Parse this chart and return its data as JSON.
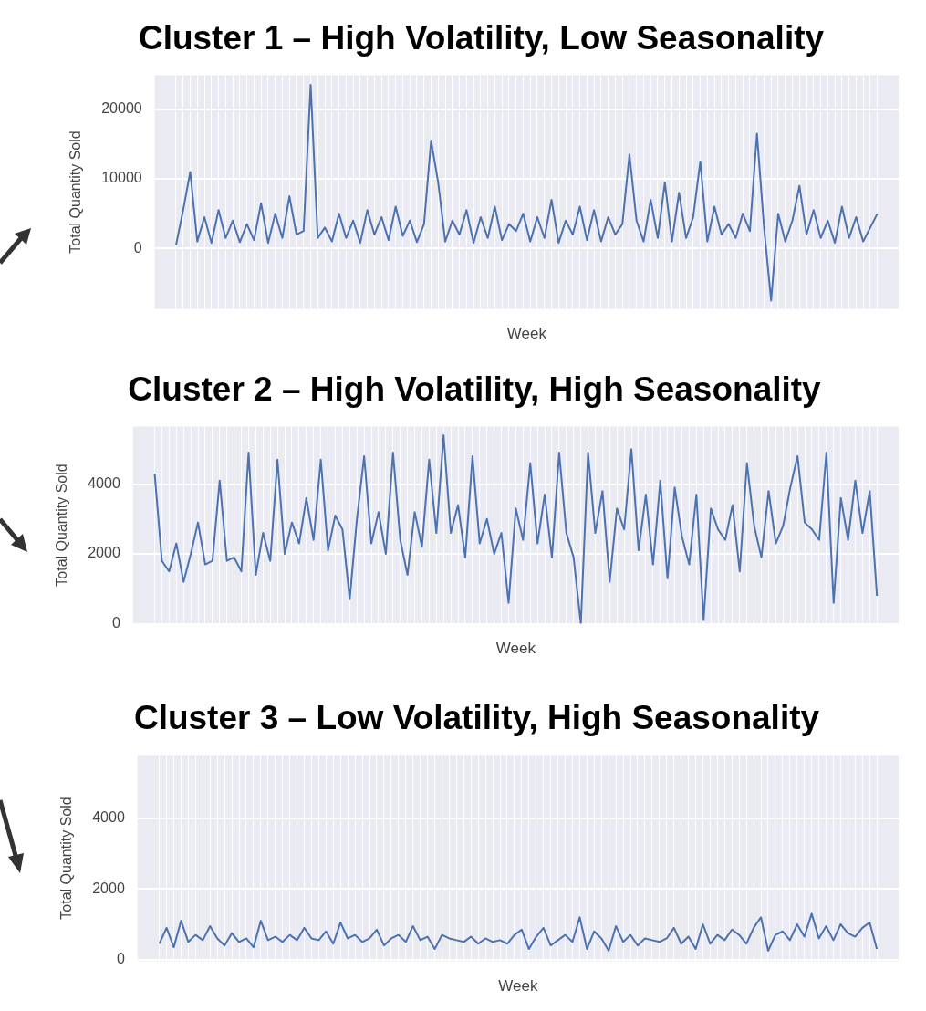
{
  "chart_data": [
    {
      "type": "line",
      "title": "Cluster 1 – High Volatility, Low Seasonality",
      "xlabel": "Week",
      "ylabel": "Total Quantity Sold",
      "categories": [
        null,
        null,
        null,
        null,
        null,
        null,
        null,
        null,
        null,
        null,
        null,
        null,
        null,
        null,
        null,
        null,
        null,
        null,
        null,
        null,
        null,
        null,
        null,
        null,
        null,
        null,
        null,
        null,
        null,
        null,
        null,
        null,
        null,
        null,
        null,
        null,
        null,
        null,
        null,
        null,
        null,
        null,
        null,
        null,
        null,
        null,
        null,
        null,
        null,
        null,
        null,
        null,
        null,
        null,
        null,
        null,
        null,
        null,
        null,
        null,
        null,
        null,
        null,
        null,
        null,
        null,
        null,
        null,
        null,
        null,
        null,
        null,
        null,
        null,
        null,
        null,
        null,
        null,
        null,
        null,
        null,
        null,
        null,
        null,
        null,
        null,
        null,
        null,
        null,
        null,
        null,
        null,
        null,
        null,
        null,
        null,
        null,
        null,
        null,
        null
      ],
      "series": [
        {
          "color": "#4c72b0",
          "values": [
            500,
            5500,
            11000,
            1000,
            4500,
            800,
            5500,
            1500,
            4000,
            900,
            3500,
            1200,
            6500,
            800,
            5000,
            1500,
            7500,
            2000,
            2500,
            23500,
            1500,
            3000,
            1000,
            5000,
            1500,
            4000,
            800,
            5500,
            2000,
            4500,
            1200,
            6000,
            1800,
            4000,
            900,
            3500,
            15500,
            9500,
            1000,
            4000,
            2000,
            5500,
            800,
            4500,
            1500,
            6000,
            1200,
            3500,
            2500,
            5000,
            1000,
            4500,
            1500,
            7000,
            800,
            4000,
            2000,
            6000,
            1200,
            5500,
            1000,
            4500,
            2000,
            3500,
            13500,
            4000,
            1000,
            7000,
            1500,
            9500,
            1000,
            8000,
            1500,
            4500,
            12500,
            1000,
            6000,
            2000,
            3500,
            1500,
            5000,
            2500,
            16500,
            3000,
            -7500,
            5000,
            1000,
            4000,
            9000,
            2000,
            5500,
            1500,
            4000,
            800,
            6000,
            1500,
            4500,
            1000,
            3000,
            5000
          ]
        }
      ],
      "ylim": [
        -8700,
        24900
      ],
      "yticks": [
        0,
        10000,
        20000
      ],
      "grid": true,
      "legend": false,
      "tick_labels": "y",
      "marker": "none",
      "line_style": "solid"
    },
    {
      "type": "line",
      "title": "Cluster 2 – High Volatility, High Seasonality",
      "xlabel": "Week",
      "ylabel": "Total Quantity Sold",
      "categories": [
        null,
        null,
        null,
        null,
        null,
        null,
        null,
        null,
        null,
        null,
        null,
        null,
        null,
        null,
        null,
        null,
        null,
        null,
        null,
        null,
        null,
        null,
        null,
        null,
        null,
        null,
        null,
        null,
        null,
        null,
        null,
        null,
        null,
        null,
        null,
        null,
        null,
        null,
        null,
        null,
        null,
        null,
        null,
        null,
        null,
        null,
        null,
        null,
        null,
        null,
        null,
        null,
        null,
        null,
        null,
        null,
        null,
        null,
        null,
        null,
        null,
        null,
        null,
        null,
        null,
        null,
        null,
        null,
        null,
        null,
        null,
        null,
        null,
        null,
        null,
        null,
        null,
        null,
        null,
        null,
        null,
        null,
        null,
        null,
        null,
        null,
        null,
        null,
        null,
        null,
        null,
        null,
        null,
        null,
        null,
        null,
        null,
        null,
        null,
        null,
        null
      ],
      "series": [
        {
          "color": "#4c72b0",
          "values": [
            4300,
            1800,
            1500,
            2300,
            1200,
            2000,
            2900,
            1700,
            1800,
            4100,
            1800,
            1900,
            1500,
            4900,
            1400,
            2600,
            1800,
            4700,
            2000,
            2900,
            2300,
            3600,
            2400,
            4700,
            2100,
            3100,
            2700,
            700,
            3000,
            4800,
            2300,
            3200,
            2000,
            4900,
            2400,
            1400,
            3200,
            2200,
            4700,
            2600,
            5400,
            2600,
            3400,
            1900,
            4800,
            2300,
            3000,
            2000,
            2600,
            600,
            3300,
            2400,
            4600,
            2300,
            3700,
            1900,
            4900,
            2600,
            1900,
            0,
            4900,
            2600,
            3800,
            1200,
            3300,
            2700,
            5000,
            2100,
            3700,
            1700,
            4100,
            1300,
            3900,
            2500,
            1700,
            3700,
            100,
            3300,
            2700,
            2400,
            3400,
            1500,
            4600,
            2800,
            1900,
            3800,
            2300,
            2800,
            3900,
            4800,
            2900,
            2700,
            2400,
            4900,
            600,
            3600,
            2400,
            4100,
            2600,
            3800,
            800
          ]
        }
      ],
      "ylim": [
        0,
        5650
      ],
      "yticks": [
        0,
        2000,
        4000
      ],
      "grid": true,
      "legend": false,
      "tick_labels": "y",
      "marker": "none",
      "line_style": "solid"
    },
    {
      "type": "line",
      "title": "Cluster 3 – Low Volatility, High Seasonality",
      "xlabel": "Week",
      "ylabel": "Total Quantity Sold",
      "categories": [
        null,
        null,
        null,
        null,
        null,
        null,
        null,
        null,
        null,
        null,
        null,
        null,
        null,
        null,
        null,
        null,
        null,
        null,
        null,
        null,
        null,
        null,
        null,
        null,
        null,
        null,
        null,
        null,
        null,
        null,
        null,
        null,
        null,
        null,
        null,
        null,
        null,
        null,
        null,
        null,
        null,
        null,
        null,
        null,
        null,
        null,
        null,
        null,
        null,
        null,
        null,
        null,
        null,
        null,
        null,
        null,
        null,
        null,
        null,
        null,
        null,
        null,
        null,
        null,
        null,
        null,
        null,
        null,
        null,
        null,
        null,
        null,
        null,
        null,
        null,
        null,
        null,
        null,
        null,
        null,
        null,
        null,
        null,
        null,
        null,
        null,
        null,
        null,
        null,
        null,
        null,
        null,
        null,
        null,
        null,
        null,
        null,
        null,
        null,
        null
      ],
      "series": [
        {
          "color": "#4c72b0",
          "values": [
            450,
            900,
            350,
            1100,
            500,
            700,
            550,
            950,
            600,
            400,
            750,
            500,
            600,
            350,
            1100,
            550,
            650,
            500,
            700,
            550,
            900,
            600,
            550,
            800,
            450,
            1050,
            600,
            700,
            500,
            600,
            850,
            400,
            600,
            700,
            500,
            950,
            550,
            650,
            300,
            700,
            600,
            550,
            500,
            650,
            450,
            600,
            500,
            550,
            450,
            700,
            850,
            300,
            650,
            900,
            400,
            550,
            700,
            500,
            1200,
            300,
            800,
            600,
            250,
            950,
            500,
            700,
            400,
            600,
            550,
            500,
            600,
            900,
            450,
            650,
            300,
            1000,
            450,
            700,
            550,
            850,
            700,
            450,
            900,
            1200,
            250,
            700,
            800,
            550,
            1000,
            650,
            1300,
            600,
            950,
            550,
            1000,
            750,
            650,
            900,
            1050,
            300
          ]
        }
      ],
      "ylim": [
        -50,
        5800
      ],
      "yticks": [
        0,
        2000,
        4000
      ],
      "grid": true,
      "legend": false,
      "tick_labels": "y",
      "marker": "none",
      "line_style": "solid"
    }
  ]
}
